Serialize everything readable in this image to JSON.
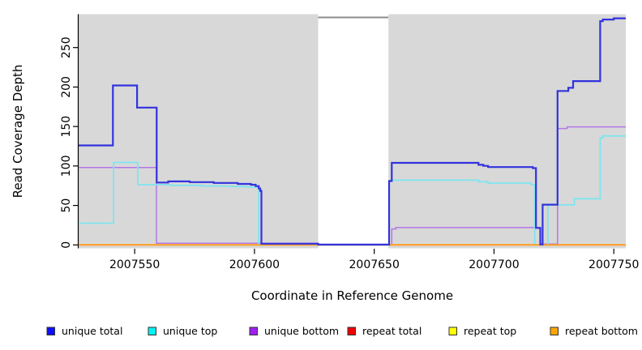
{
  "chart_data": {
    "type": "line",
    "step": true,
    "title": "",
    "xlabel": "Coordinate in Reference Genome",
    "ylabel": "Read Coverage Depth",
    "x_ticks": [
      2007550,
      2007600,
      2007650,
      2007700,
      2007750
    ],
    "y_ticks": [
      0,
      50,
      100,
      150,
      200,
      250
    ],
    "xlim": [
      2007526.6,
      2007755
    ],
    "ylim": [
      0,
      293
    ],
    "grid": false,
    "plot_bg_color": "#d8d8d8",
    "coverage_gap": {
      "from": 2007626.6,
      "to": 2007655.9,
      "color": "#ffffff",
      "top_bar_color": "#8c8c8c"
    },
    "legend_position": "bottom",
    "series": [
      {
        "name": "unique total",
        "line_color": "#3232de",
        "legend_color": "#0d0dff",
        "width": 2.2,
        "points": [
          [
            2007526.6,
            126
          ],
          [
            2007540.9,
            202
          ],
          [
            2007551,
            174
          ],
          [
            2007559.2,
            79
          ],
          [
            2007564,
            80.5
          ],
          [
            2007573,
            79.5
          ],
          [
            2007583,
            78.5
          ],
          [
            2007593,
            77.3
          ],
          [
            2007598.5,
            76.3
          ],
          [
            2007600.5,
            74.5
          ],
          [
            2007601.8,
            71.5
          ],
          [
            2007602.4,
            68.5
          ],
          [
            2007602.9,
            1.5
          ],
          [
            2007626.6,
            0.4
          ],
          [
            2007656.2,
            81
          ],
          [
            2007657.3,
            104
          ],
          [
            2007693.5,
            101.5
          ],
          [
            2007695.5,
            100.2
          ],
          [
            2007697.5,
            98.6
          ],
          [
            2007716.2,
            97.3
          ],
          [
            2007717.5,
            21.6
          ],
          [
            2007719.3,
            0.6
          ],
          [
            2007720.3,
            51
          ],
          [
            2007726.5,
            195
          ],
          [
            2007731,
            199
          ],
          [
            2007733,
            207.5
          ],
          [
            2007744.3,
            283.5
          ],
          [
            2007745.4,
            285.5
          ],
          [
            2007750,
            287
          ]
        ]
      },
      {
        "name": "unique top",
        "line_color": "#7de5ef",
        "legend_color": "#00f2f2",
        "width": 1.8,
        "points": [
          [
            2007526.6,
            27.5
          ],
          [
            2007541.2,
            104.5
          ],
          [
            2007551.3,
            76.4
          ],
          [
            2007565,
            75.4
          ],
          [
            2007578,
            74.6
          ],
          [
            2007590,
            74
          ],
          [
            2007597,
            73.3
          ],
          [
            2007601.8,
            0
          ],
          [
            2007656.2,
            80.5
          ],
          [
            2007657.3,
            82
          ],
          [
            2007693.5,
            80
          ],
          [
            2007697.5,
            78.3
          ],
          [
            2007715.5,
            76.3
          ],
          [
            2007717,
            0
          ],
          [
            2007722.5,
            50.7
          ],
          [
            2007733.5,
            58.5
          ],
          [
            2007744.3,
            135.5
          ],
          [
            2007745.4,
            138
          ]
        ]
      },
      {
        "name": "unique bottom",
        "line_color": "#b277e8",
        "legend_color": "#a020f0",
        "width": 1.5,
        "points": [
          [
            2007526.6,
            98
          ],
          [
            2007559.1,
            2.2
          ],
          [
            2007626.6,
            0
          ],
          [
            2007657.3,
            20.2
          ],
          [
            2007659,
            22
          ],
          [
            2007719.3,
            1
          ],
          [
            2007726.5,
            147.5
          ],
          [
            2007730.5,
            149.5
          ]
        ]
      },
      {
        "name": "repeat total",
        "line_color": "#cc0000",
        "legend_color": "#ee0000",
        "width": 1.4,
        "points": [
          [
            2007526.6,
            0
          ]
        ]
      },
      {
        "name": "repeat top",
        "line_color": "#ffff00",
        "legend_color": "#ffff00",
        "width": 1.4,
        "points": [
          [
            2007526.6,
            0
          ]
        ]
      },
      {
        "name": "repeat bottom",
        "line_color": "#ff9d1e",
        "legend_color": "#ffa500",
        "width": 2.0,
        "points": [
          [
            2007526.6,
            0
          ]
        ]
      }
    ],
    "draw_order": [
      "unique bottom",
      "unique top",
      "repeat total",
      "repeat top",
      "repeat bottom",
      "unique total"
    ]
  }
}
